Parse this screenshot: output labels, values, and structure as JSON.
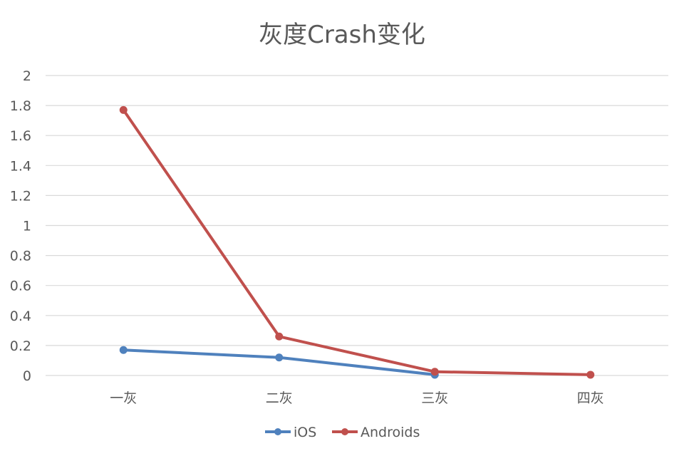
{
  "chart_data": {
    "type": "line",
    "title": "灰度Crash变化",
    "categories": [
      "一灰",
      "二灰",
      "三灰",
      "四灰"
    ],
    "series": [
      {
        "name": "iOS",
        "values": [
          0.17,
          0.12,
          0.005,
          null
        ],
        "color": "#4f81bd"
      },
      {
        "name": "Androids",
        "values": [
          1.77,
          0.26,
          0.025,
          0.005
        ],
        "color": "#c0504d"
      }
    ],
    "ylim": [
      0,
      2
    ],
    "yticks": [
      "0",
      "0.2",
      "0.4",
      "0.6",
      "0.8",
      "1",
      "1.2",
      "1.4",
      "1.6",
      "1.8",
      "2"
    ],
    "grid": true,
    "legend_position": "bottom"
  }
}
